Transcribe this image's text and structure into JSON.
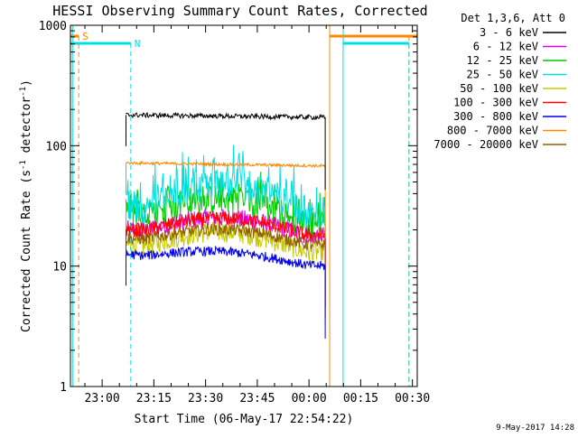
{
  "chart_data": {
    "type": "line",
    "title": "HESSI Observing Summary Count Rates, Corrected",
    "xlabel": "Start Time (06-May-17 22:54:22)",
    "ylabel_prefix": "Corrected Count Rate (s",
    "ylabel_sup1": "-1",
    "ylabel_mid": " detector",
    "ylabel_sup2": "-1",
    "ylabel_suffix": ")",
    "ylabel_full": "Corrected Count Rate (s-1 detector-1)",
    "y_scale": "log",
    "ylim": [
      1,
      1000
    ],
    "xlim_minutes": [
      -3.6,
      97
    ],
    "x_ticks": [
      {
        "label": "23:00",
        "m": 5.6
      },
      {
        "label": "23:15",
        "m": 20.6
      },
      {
        "label": "23:30",
        "m": 35.6
      },
      {
        "label": "23:45",
        "m": 50.6
      },
      {
        "label": "00:00",
        "m": 65.6
      },
      {
        "label": "00:15",
        "m": 80.6
      },
      {
        "label": "00:30",
        "m": 95.6
      }
    ],
    "y_ticks": [
      {
        "label": "1",
        "v": 1
      },
      {
        "label": "10",
        "v": 10
      },
      {
        "label": "100",
        "v": 100
      },
      {
        "label": "1000",
        "v": 1000
      }
    ],
    "legend_title": "Det 1,3,6, Att 0",
    "legend_placement": "right",
    "data_start_m": 12.5,
    "data_end_m": 70.3,
    "series": [
      {
        "name": "3 - 6 keV",
        "color": "#000000",
        "base": 180,
        "end": 172,
        "hump": 0,
        "noise": 0.02,
        "spike": 0
      },
      {
        "name": "6 - 12 keV",
        "color": "#e000e0",
        "base": 20,
        "end": 18,
        "hump": 0.12,
        "noise": 0.08,
        "spike": 0
      },
      {
        "name": "12 - 25 keV",
        "color": "#00cc00",
        "base": 26,
        "end": 22,
        "hump": 0.18,
        "noise": 0.12,
        "spike": 0.12
      },
      {
        "name": "25 - 50 keV",
        "color": "#00e0e0",
        "base": 30,
        "end": 27,
        "hump": 0.22,
        "noise": 0.12,
        "spike": 0.16
      },
      {
        "name": "50 - 100 keV",
        "color": "#c8c800",
        "base": 15,
        "end": 13,
        "hump": 0.14,
        "noise": 0.09,
        "spike": 0
      },
      {
        "name": "100 - 300 keV",
        "color": "#ff0000",
        "base": 20,
        "end": 18,
        "hump": 0.12,
        "noise": 0.06,
        "spike": 0
      },
      {
        "name": "300 - 800 keV",
        "color": "#0000ee",
        "base": 12.5,
        "end": 10,
        "hump": 0.07,
        "noise": 0.04,
        "spike": 0
      },
      {
        "name": "800 - 7000 keV",
        "color": "#ff8800",
        "base": 72,
        "end": 68,
        "hump": 0,
        "noise": 0.012,
        "spike": 0
      },
      {
        "name": "7000 - 20000 keV",
        "color": "#906000",
        "base": 17,
        "end": 15,
        "hump": 0.1,
        "noise": 0.05,
        "spike": 0
      }
    ],
    "annotations": [
      {
        "label": "S",
        "color": "#ff8800"
      },
      {
        "label": "N",
        "color": "#00e0e0"
      }
    ],
    "timestamp": "9-May-2017 14:28"
  }
}
